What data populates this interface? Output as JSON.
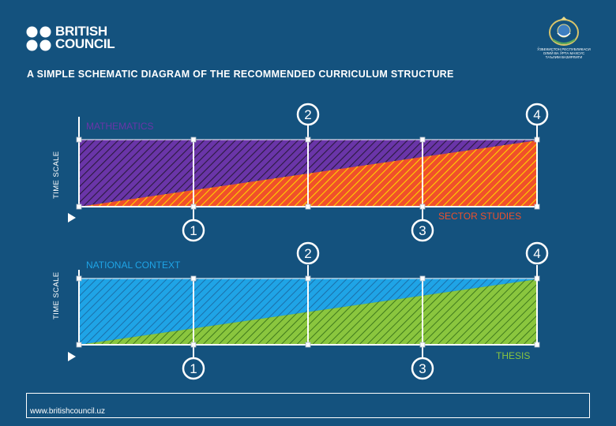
{
  "header": {
    "logo_lines": [
      "BRITISH",
      "COUNCIL"
    ],
    "emblem_caption": [
      "ЎЗБЕКИСТОН РЕСПУБЛИКАСИ",
      "ОЛИЙ ВА ЎРТА МАХСУС",
      "ТАЪЛИМ ВАЗИРЛИГИ"
    ],
    "title": "A SIMPLE SCHEMATIC DIAGRAM OF THE RECOMMENDED CURRICULUM STRUCTURE"
  },
  "diagrams": [
    {
      "top_label": "MATHEMATICS",
      "bottom_label": "SECTOR STUDIES",
      "axis_label": "TIME SCALE",
      "upper_color": "#6a35a8",
      "lower_color": "#f0502a",
      "markers_top": [
        "2",
        "4"
      ],
      "markers_bottom": [
        "1",
        "3"
      ]
    },
    {
      "top_label": "NATIONAL CONTEXT",
      "bottom_label": "THESIS",
      "axis_label": "TIME SCALE",
      "upper_color": "#1fa4e6",
      "lower_color": "#8ac63e",
      "markers_top": [
        "2",
        "4"
      ],
      "markers_bottom": [
        "1",
        "3"
      ]
    }
  ],
  "footer": {
    "url": "www.britishcouncil.uz"
  }
}
